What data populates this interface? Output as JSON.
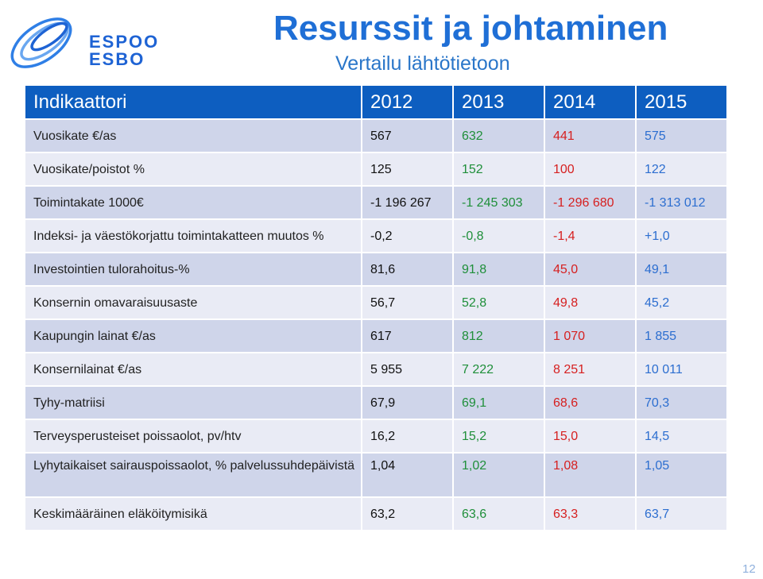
{
  "header": {
    "logo_line1": "ESPOO",
    "logo_line2": "ESBO",
    "title": "Resurssit ja johtaminen",
    "subtitle": "Vertailu lähtötietoon"
  },
  "table": {
    "columns": [
      "Indikaattori",
      "2012",
      "2013",
      "2014",
      "2015"
    ],
    "rows": [
      {
        "label": "Vuosikate €/as",
        "values": [
          "567",
          "632",
          "441",
          "575"
        ]
      },
      {
        "label": "Vuosikate/poistot %",
        "values": [
          "125",
          "152",
          "100",
          "122"
        ]
      },
      {
        "label": "Toimintakate 1000€",
        "values": [
          "-1 196 267",
          "-1 245 303",
          "-1 296 680",
          "-1 313 012"
        ]
      },
      {
        "label": "Indeksi- ja väestökorjattu toimintakatteen muutos %",
        "values": [
          "-0,2",
          "-0,8",
          "-1,4",
          "+1,0"
        ]
      },
      {
        "label": "Investointien tulorahoitus-%",
        "values": [
          "81,6",
          "91,8",
          "45,0",
          "49,1"
        ]
      },
      {
        "label": "Konsernin omavaraisuusaste",
        "values": [
          "56,7",
          "52,8",
          "49,8",
          "45,2"
        ]
      },
      {
        "label": "Kaupungin lainat €/as",
        "values": [
          "617",
          "812",
          "1 070",
          "1 855"
        ]
      },
      {
        "label": "Konsernilainat €/as",
        "values": [
          "5 955",
          "7 222",
          "8 251",
          "10 011"
        ]
      },
      {
        "label": "Tyhy-matriisi",
        "values": [
          "67,9",
          "69,1",
          "68,6",
          "70,3"
        ]
      },
      {
        "label": "Terveysperusteiset poissaolot, pv/htv",
        "values": [
          "16,2",
          "15,2",
          "15,0",
          "14,5"
        ]
      },
      {
        "label": "Lyhytaikaiset sairauspoissaolot, % palvelussuhdepäivistä",
        "values": [
          "1,04",
          "1,02",
          "1,08",
          "1,05"
        ]
      },
      {
        "label": "Keskimääräinen eläköitymisikä",
        "values": [
          "63,2",
          "63,6",
          "63,3",
          "63,7"
        ]
      }
    ]
  },
  "colors": {
    "header_bg": "#0d5ec0",
    "year_2013": "#1f8f3a",
    "year_2014": "#d62020",
    "year_2015": "#2c6ed0"
  },
  "footer": {
    "page_number": "12"
  }
}
